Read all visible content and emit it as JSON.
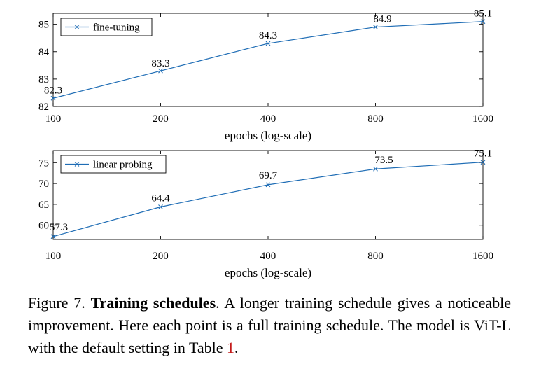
{
  "chart_data": [
    {
      "type": "line",
      "x": [
        100,
        200,
        400,
        800,
        1600
      ],
      "xscale": "log",
      "series": [
        {
          "name": "fine-tuning",
          "values": [
            82.3,
            83.3,
            84.3,
            84.9,
            85.1
          ]
        }
      ],
      "data_labels": [
        "82.3",
        "83.3",
        "84.3",
        "84.9",
        "85.1"
      ],
      "x_ticks": [
        "100",
        "200",
        "400",
        "800",
        "1600"
      ],
      "y_ticks": [
        "82",
        "83",
        "84",
        "85"
      ],
      "xlabel": "epochs (log-scale)",
      "ylabel": "",
      "ylim": [
        82,
        85.4
      ],
      "legend": "top-left",
      "marker": "x",
      "color": "#1f6db5"
    },
    {
      "type": "line",
      "x": [
        100,
        200,
        400,
        800,
        1600
      ],
      "xscale": "log",
      "series": [
        {
          "name": "linear probing",
          "values": [
            57.3,
            64.4,
            69.7,
            73.5,
            75.1
          ]
        }
      ],
      "data_labels": [
        "57.3",
        "64.4",
        "69.7",
        "73.5",
        "75.1"
      ],
      "x_ticks": [
        "100",
        "200",
        "400",
        "800",
        "1600"
      ],
      "y_ticks": [
        "60",
        "65",
        "70",
        "75"
      ],
      "xlabel": "epochs (log-scale)",
      "ylabel": "",
      "ylim": [
        56.6,
        77.9
      ],
      "legend": "top-left",
      "marker": "x",
      "color": "#1f6db5"
    }
  ],
  "caption": {
    "prefix": "Figure 7. ",
    "title": "Training schedules",
    "text": ". A longer training schedule gives a noticeable improvement. Here each point is a full training schedule. The model is ViT-L with the default setting in Table ",
    "ref": "1",
    "suffix": "."
  }
}
